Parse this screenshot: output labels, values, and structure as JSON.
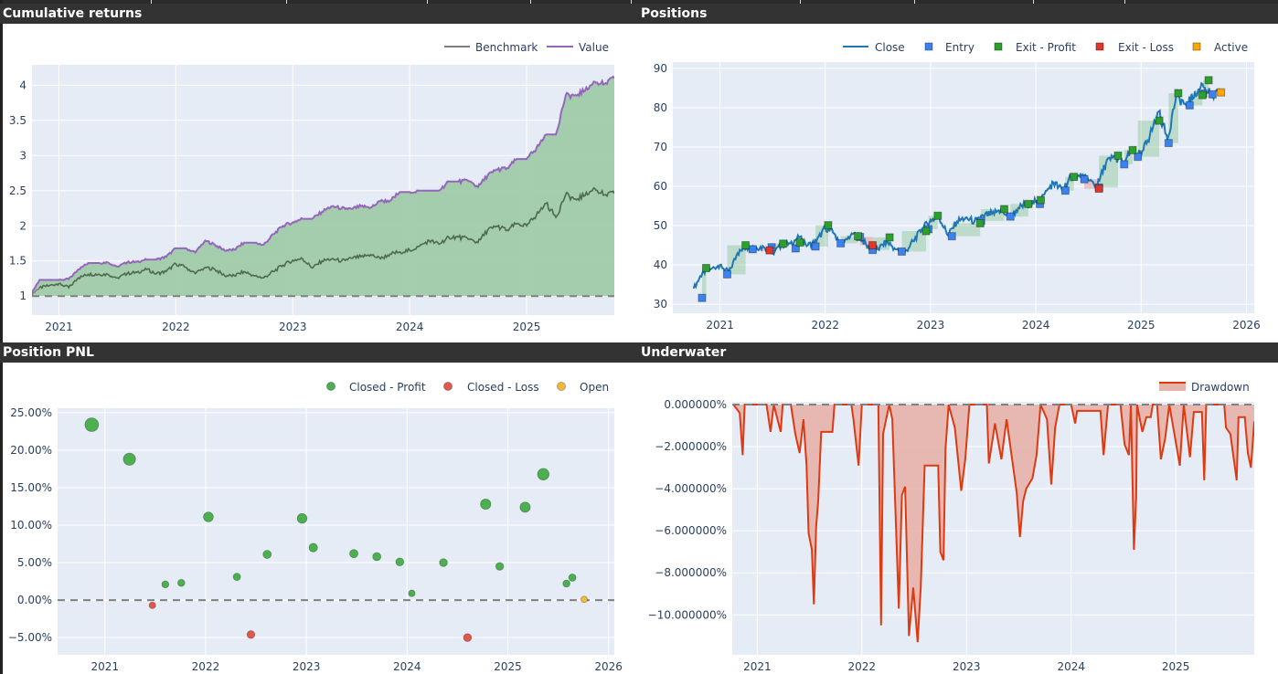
{
  "panels": {
    "cumulative": {
      "title": "Cumulative returns"
    },
    "positions": {
      "title": "Positions"
    },
    "pnl": {
      "title": "Position PNL"
    },
    "underwater": {
      "title": "Underwater"
    }
  },
  "chart_data": [
    {
      "type": "line",
      "title": "Cumulative returns",
      "legend": [
        "Benchmark",
        "Value"
      ],
      "legend_placement": "top-right",
      "colors": {
        "benchmark": "#7f7f7f",
        "value": "#9467bd",
        "fill": "#9fcba8",
        "baseline": "#808080"
      },
      "xlim": [
        "2020-10-08",
        "2025-10-01"
      ],
      "ylim": [
        0.73,
        4.29
      ],
      "x_ticks": [
        "2021",
        "2022",
        "2023",
        "2024",
        "2025"
      ],
      "y_ticks": [
        "1",
        "1.5",
        "2",
        "2.5",
        "3",
        "3.5",
        "4"
      ],
      "baseline": 1,
      "grid": true,
      "start_month": "2020-10",
      "series": [
        {
          "name": "Benchmark",
          "values": [
            1.0,
            1.12,
            1.15,
            1.18,
            1.12,
            1.26,
            1.31,
            1.31,
            1.31,
            1.26,
            1.32,
            1.34,
            1.38,
            1.32,
            1.35,
            1.46,
            1.41,
            1.32,
            1.41,
            1.38,
            1.29,
            1.29,
            1.35,
            1.29,
            1.26,
            1.35,
            1.44,
            1.51,
            1.53,
            1.4,
            1.5,
            1.53,
            1.5,
            1.54,
            1.56,
            1.59,
            1.53,
            1.6,
            1.63,
            1.65,
            1.71,
            1.79,
            1.74,
            1.84,
            1.84,
            1.81,
            1.76,
            1.94,
            1.99,
            1.94,
            2.03,
            2.0,
            2.15,
            2.32,
            2.12,
            2.44,
            2.38,
            2.43,
            2.53,
            2.44,
            2.46
          ]
        },
        {
          "name": "Value",
          "values": [
            1.0,
            1.23,
            1.23,
            1.23,
            1.24,
            1.38,
            1.47,
            1.47,
            1.48,
            1.42,
            1.48,
            1.49,
            1.52,
            1.52,
            1.56,
            1.68,
            1.68,
            1.62,
            1.79,
            1.73,
            1.65,
            1.66,
            1.76,
            1.76,
            1.73,
            1.88,
            2.0,
            2.05,
            2.1,
            2.1,
            2.2,
            2.28,
            2.25,
            2.24,
            2.28,
            2.26,
            2.35,
            2.36,
            2.48,
            2.48,
            2.5,
            2.5,
            2.5,
            2.63,
            2.63,
            2.64,
            2.55,
            2.72,
            2.8,
            2.82,
            2.95,
            2.95,
            3.1,
            3.3,
            3.3,
            3.85,
            3.86,
            3.92,
            4.05,
            4.02,
            4.1
          ]
        }
      ]
    },
    {
      "type": "line",
      "title": "Positions",
      "legend": [
        "Close",
        "Entry",
        "Exit - Profit",
        "Exit - Loss",
        "Active"
      ],
      "legend_placement": "top-right",
      "colors": {
        "close": "#1f77b4",
        "entry": "#3b82f0",
        "exit_profit": "#2ca02c",
        "exit_loss": "#e0352b",
        "active": "#ffa500",
        "profit_zone": "#2ca02c",
        "loss_zone": "#e0352b"
      },
      "xlim": [
        "2020-07-20",
        "2026-01-28"
      ],
      "ylim": [
        27.7,
        91.6
      ],
      "x_ticks": [
        "2021",
        "2022",
        "2023",
        "2024",
        "2025",
        "2026"
      ],
      "y_ticks": [
        "30",
        "40",
        "50",
        "60",
        "70",
        "80",
        "90"
      ],
      "grid": true,
      "start_month": "2020-10",
      "close": [
        34,
        38,
        39,
        40,
        38,
        43,
        44.5,
        44.5,
        44.5,
        43,
        45,
        45.5,
        47,
        45,
        46,
        49.5,
        48,
        45,
        48,
        47,
        44,
        44,
        46,
        44,
        43,
        46,
        49,
        51.5,
        52,
        47.5,
        51,
        52,
        51,
        52.5,
        53,
        54,
        52,
        54.5,
        55.5,
        56,
        58,
        61,
        59,
        62.5,
        62.5,
        61.5,
        60,
        66,
        67.5,
        66,
        69,
        68,
        73,
        79,
        72,
        83,
        81,
        82.5,
        86,
        83,
        83.5
      ],
      "trades": [
        {
          "entry_date": "2020-10-30",
          "entry_price": 31.6,
          "exit_date": "2020-11-14",
          "exit_price": 39.2,
          "status": "profit"
        },
        {
          "entry_date": "2021-01-26",
          "entry_price": 37.6,
          "exit_date": "2021-03-29",
          "exit_price": 45.0,
          "status": "profit"
        },
        {
          "entry_date": "2021-04-23",
          "entry_price": 44.0,
          "exit_date": "2021-06-21",
          "exit_price": 43.7,
          "status": "loss"
        },
        {
          "entry_date": "2021-06-28",
          "entry_price": 44.5,
          "exit_date": "2021-08-07",
          "exit_price": 45.4,
          "status": "profit"
        },
        {
          "entry_date": "2021-09-20",
          "entry_price": 44.2,
          "exit_date": "2021-10-04",
          "exit_price": 45.7,
          "status": "profit"
        },
        {
          "entry_date": "2021-11-28",
          "entry_price": 44.7,
          "exit_date": "2022-01-11",
          "exit_price": 50.1,
          "status": "profit"
        },
        {
          "entry_date": "2022-02-24",
          "entry_price": 45.5,
          "exit_date": "2022-04-23",
          "exit_price": 47.3,
          "status": "profit"
        },
        {
          "entry_date": "2022-04-30",
          "entry_price": 47.1,
          "exit_date": "2022-06-13",
          "exit_price": 45.0,
          "status": "loss"
        },
        {
          "entry_date": "2022-06-13",
          "entry_price": 43.8,
          "exit_date": "2022-08-11",
          "exit_price": 47.0,
          "status": "profit"
        },
        {
          "entry_date": "2022-09-23",
          "entry_price": 43.4,
          "exit_date": "2022-12-16",
          "exit_price": 48.6,
          "status": "profit"
        },
        {
          "entry_date": "2022-12-24",
          "entry_price": 49.1,
          "exit_date": "2023-01-26",
          "exit_price": 52.5,
          "status": "profit"
        },
        {
          "entry_date": "2023-03-14",
          "entry_price": 47.3,
          "exit_date": "2023-06-21",
          "exit_price": 50.6,
          "status": "profit"
        },
        {
          "entry_date": "2023-06-24",
          "entry_price": 51.2,
          "exit_date": "2023-09-13",
          "exit_price": 54.2,
          "status": "profit"
        },
        {
          "entry_date": "2023-10-04",
          "entry_price": 52.3,
          "exit_date": "2023-12-05",
          "exit_price": 55.5,
          "status": "profit"
        },
        {
          "entry_date": "2024-01-15",
          "entry_price": 55.5,
          "exit_date": "2024-01-18",
          "exit_price": 56.5,
          "status": "profit"
        },
        {
          "entry_date": "2024-04-12",
          "entry_price": 58.9,
          "exit_date": "2024-05-11",
          "exit_price": 62.4,
          "status": "profit"
        },
        {
          "entry_date": "2024-06-17",
          "entry_price": 61.8,
          "exit_date": "2024-08-07",
          "exit_price": 59.4,
          "status": "loss"
        },
        {
          "entry_date": "2024-08-07",
          "entry_price": 59.7,
          "exit_date": "2024-10-12",
          "exit_price": 67.8,
          "status": "profit"
        },
        {
          "entry_date": "2024-11-03",
          "entry_price": 65.6,
          "exit_date": "2024-12-02",
          "exit_price": 69.2,
          "status": "profit"
        },
        {
          "entry_date": "2024-12-20",
          "entry_price": 67.5,
          "exit_date": "2025-03-03",
          "exit_price": 76.7,
          "status": "profit"
        },
        {
          "entry_date": "2025-04-05",
          "entry_price": 71.0,
          "exit_date": "2025-05-08",
          "exit_price": 83.7,
          "status": "profit"
        },
        {
          "entry_date": "2025-06-17",
          "entry_price": 80.6,
          "exit_date": "2025-07-31",
          "exit_price": 83.2,
          "status": "profit"
        },
        {
          "entry_date": "2025-08-03",
          "entry_price": 83.6,
          "exit_date": "2025-08-22",
          "exit_price": 87.0,
          "status": "profit"
        },
        {
          "entry_date": "2025-09-05",
          "entry_price": 83.4,
          "exit_date": "2025-10-04",
          "exit_price": 83.9,
          "status": "active"
        }
      ]
    },
    {
      "type": "scatter",
      "title": "Position PNL",
      "legend": [
        "Closed - Profit",
        "Closed - Loss",
        "Open"
      ],
      "legend_placement": "top-right",
      "colors": {
        "profit": "#4caf50",
        "loss": "#e3574b",
        "open": "#f5b83d",
        "baseline": "#808080"
      },
      "xlim": [
        "2020-07-12",
        "2026-01-22"
      ],
      "ylim": [
        -7.3,
        25.6
      ],
      "x_ticks": [
        "2021",
        "2022",
        "2023",
        "2024",
        "2025",
        "2026"
      ],
      "y_ticks": [
        "−5.00%",
        "0.00%",
        "5.00%",
        "10.00%",
        "15.00%",
        "20.00%",
        "25.00%"
      ],
      "baseline": 0,
      "grid": true,
      "points": [
        {
          "date": "2020-11-14",
          "pnl": 23.4,
          "status": "profit"
        },
        {
          "date": "2021-03-29",
          "pnl": 18.8,
          "status": "profit"
        },
        {
          "date": "2021-06-21",
          "pnl": -0.7,
          "status": "loss"
        },
        {
          "date": "2021-08-07",
          "pnl": 2.1,
          "status": "profit"
        },
        {
          "date": "2021-10-04",
          "pnl": 2.3,
          "status": "profit"
        },
        {
          "date": "2022-01-11",
          "pnl": 11.1,
          "status": "profit"
        },
        {
          "date": "2022-04-23",
          "pnl": 3.1,
          "status": "profit"
        },
        {
          "date": "2022-06-13",
          "pnl": -4.6,
          "status": "loss"
        },
        {
          "date": "2022-08-11",
          "pnl": 6.1,
          "status": "profit"
        },
        {
          "date": "2022-12-16",
          "pnl": 10.9,
          "status": "profit"
        },
        {
          "date": "2023-01-26",
          "pnl": 7.0,
          "status": "profit"
        },
        {
          "date": "2023-06-21",
          "pnl": 6.2,
          "status": "profit"
        },
        {
          "date": "2023-09-13",
          "pnl": 5.8,
          "status": "profit"
        },
        {
          "date": "2023-12-05",
          "pnl": 5.1,
          "status": "profit"
        },
        {
          "date": "2024-01-18",
          "pnl": 0.9,
          "status": "profit"
        },
        {
          "date": "2024-05-11",
          "pnl": 5.0,
          "status": "profit"
        },
        {
          "date": "2024-08-07",
          "pnl": -5.0,
          "status": "loss"
        },
        {
          "date": "2024-10-12",
          "pnl": 12.8,
          "status": "profit"
        },
        {
          "date": "2024-12-02",
          "pnl": 4.5,
          "status": "profit"
        },
        {
          "date": "2025-03-03",
          "pnl": 12.4,
          "status": "profit"
        },
        {
          "date": "2025-05-08",
          "pnl": 16.8,
          "status": "profit"
        },
        {
          "date": "2025-07-31",
          "pnl": 2.2,
          "status": "profit"
        },
        {
          "date": "2025-08-22",
          "pnl": 3.0,
          "status": "profit"
        },
        {
          "date": "2025-10-04",
          "pnl": 0.1,
          "status": "open"
        }
      ]
    },
    {
      "type": "area",
      "title": "Underwater",
      "legend": [
        "Drawdown"
      ],
      "legend_placement": "top-right",
      "colors": {
        "line": "#dd3a12",
        "fill": "#e6b3aa",
        "baseline": "#808080"
      },
      "xlim": [
        "2020-10-05",
        "2025-10-01"
      ],
      "ylim": [
        -11.9,
        0.13
      ],
      "x_ticks": [
        "2021",
        "2022",
        "2023",
        "2024",
        "2025"
      ],
      "y_ticks": [
        "−10.000000%",
        "−8.000000%",
        "−6.000000%",
        "−4.000000%",
        "−2.000000%",
        "0.000000%"
      ],
      "baseline": 0,
      "grid": true,
      "drawdown": [
        [
          "2020-10-09",
          0
        ],
        [
          "2020-10-31",
          -0.4
        ],
        [
          "2020-11-11",
          -2.4
        ],
        [
          "2020-11-18",
          0
        ],
        [
          "2021-02-03",
          0
        ],
        [
          "2021-02-17",
          -1.3
        ],
        [
          "2021-02-28",
          0
        ],
        [
          "2021-03-22",
          -1.3
        ],
        [
          "2021-03-29",
          0
        ],
        [
          "2021-04-27",
          0
        ],
        [
          "2021-05-12",
          -1.4
        ],
        [
          "2021-05-27",
          -2.3
        ],
        [
          "2021-06-10",
          -0.7
        ],
        [
          "2021-06-21",
          -2.9
        ],
        [
          "2021-06-28",
          -6.1
        ],
        [
          "2021-07-09",
          -6.9
        ],
        [
          "2021-07-16",
          -9.5
        ],
        [
          "2021-07-24",
          -5.8
        ],
        [
          "2021-07-31",
          -4.6
        ],
        [
          "2021-08-11",
          -1.3
        ],
        [
          "2021-09-20",
          -1.3
        ],
        [
          "2021-09-27",
          0
        ],
        [
          "2021-11-25",
          0
        ],
        [
          "2021-12-02",
          -0.7
        ],
        [
          "2021-12-20",
          -2.9
        ],
        [
          "2022-01-01",
          0
        ],
        [
          "2022-02-28",
          0
        ],
        [
          "2022-03-07",
          -10.5
        ],
        [
          "2022-03-14",
          -1.4
        ],
        [
          "2022-04-05",
          0
        ],
        [
          "2022-04-16",
          -0.7
        ],
        [
          "2022-05-08",
          -9.7
        ],
        [
          "2022-05-19",
          -4.3
        ],
        [
          "2022-05-30",
          -3.9
        ],
        [
          "2022-06-13",
          -11.0
        ],
        [
          "2022-06-28",
          -8.7
        ],
        [
          "2022-07-13",
          -11.3
        ],
        [
          "2022-07-24",
          -8.7
        ],
        [
          "2022-08-07",
          -2.9
        ],
        [
          "2022-09-24",
          -2.9
        ],
        [
          "2022-10-01",
          -7.0
        ],
        [
          "2022-10-12",
          -7.4
        ],
        [
          "2022-10-19",
          -2.1
        ],
        [
          "2022-10-30",
          0
        ],
        [
          "2022-11-21",
          -1.1
        ],
        [
          "2022-12-13",
          -4.1
        ],
        [
          "2022-12-27",
          -2.6
        ],
        [
          "2023-01-11",
          0
        ],
        [
          "2023-03-11",
          0
        ],
        [
          "2023-03-18",
          -2.8
        ],
        [
          "2023-04-09",
          -0.9
        ],
        [
          "2023-05-01",
          -2.6
        ],
        [
          "2023-05-19",
          -0.7
        ],
        [
          "2023-06-24",
          -4.2
        ],
        [
          "2023-07-05",
          -6.3
        ],
        [
          "2023-07-16",
          -4.6
        ],
        [
          "2023-07-27",
          -4.0
        ],
        [
          "2023-08-18",
          -3.5
        ],
        [
          "2023-09-02",
          -2.4
        ],
        [
          "2023-09-16",
          0
        ],
        [
          "2023-10-08",
          -0.7
        ],
        [
          "2023-10-23",
          -3.8
        ],
        [
          "2023-11-06",
          -1.1
        ],
        [
          "2023-11-21",
          0
        ],
        [
          "2024-01-01",
          0
        ],
        [
          "2024-01-15",
          -0.9
        ],
        [
          "2024-01-22",
          -0.3
        ],
        [
          "2024-04-12",
          -0.3
        ],
        [
          "2024-04-23",
          -2.4
        ],
        [
          "2024-05-08",
          0
        ],
        [
          "2024-06-21",
          0
        ],
        [
          "2024-07-05",
          -1.9
        ],
        [
          "2024-07-20",
          -2.4
        ],
        [
          "2024-07-27",
          0
        ],
        [
          "2024-08-07",
          -6.9
        ],
        [
          "2024-08-15",
          -4.3
        ],
        [
          "2024-08-18",
          0
        ],
        [
          "2024-09-06",
          -1.3
        ],
        [
          "2024-09-20",
          -0.6
        ],
        [
          "2024-10-05",
          -0.6
        ],
        [
          "2024-10-12",
          0
        ],
        [
          "2024-10-27",
          0
        ],
        [
          "2024-11-10",
          -2.6
        ],
        [
          "2024-11-25",
          -1.6
        ],
        [
          "2024-12-09",
          0
        ],
        [
          "2025-01-15",
          -2.9
        ],
        [
          "2025-01-29",
          0
        ],
        [
          "2025-02-20",
          -2.5
        ],
        [
          "2025-03-03",
          -0.35
        ],
        [
          "2025-04-01",
          -0.35
        ],
        [
          "2025-04-09",
          -3.6
        ],
        [
          "2025-04-16",
          0
        ],
        [
          "2025-06-18",
          0
        ],
        [
          "2025-06-24",
          -1.1
        ],
        [
          "2025-07-09",
          -1.4
        ],
        [
          "2025-07-31",
          -3.6
        ],
        [
          "2025-08-07",
          -0.6
        ],
        [
          "2025-08-29",
          -0.6
        ],
        [
          "2025-09-09",
          -2.3
        ],
        [
          "2025-09-20",
          -3.0
        ],
        [
          "2025-10-01",
          -0.8
        ]
      ]
    }
  ]
}
